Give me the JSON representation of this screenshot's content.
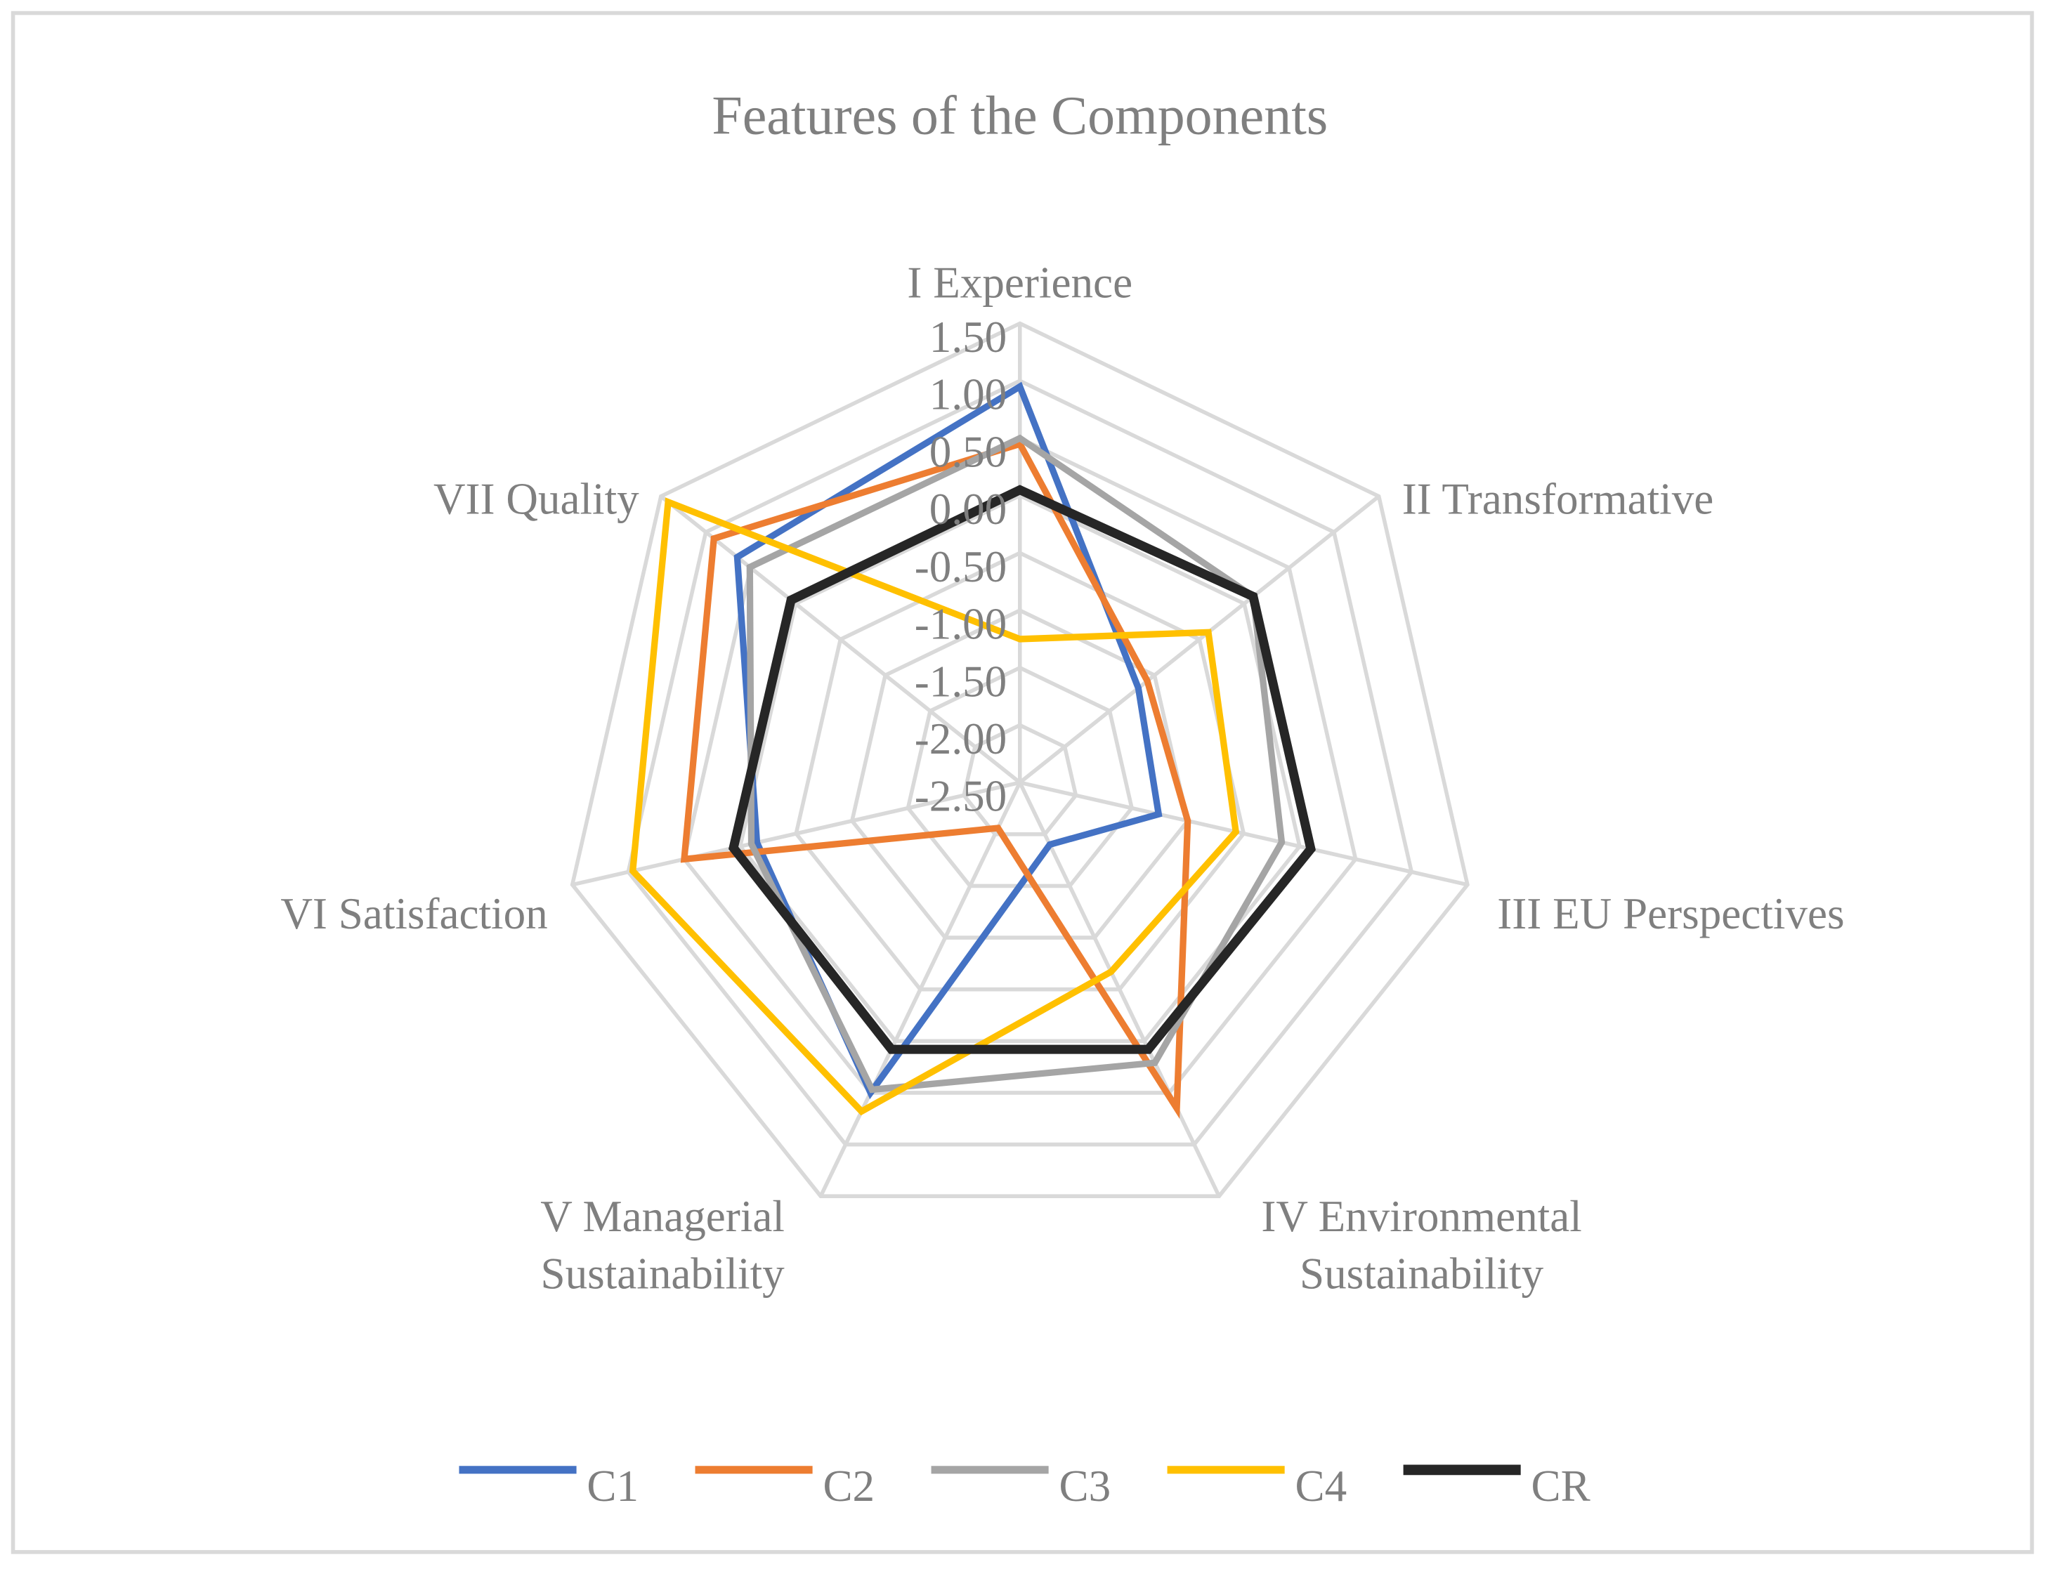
{
  "chart_data": {
    "type": "radar",
    "title": "Features of the Components",
    "categories": [
      "I Experience",
      "II Transformative",
      "III EU Perspectives",
      "IV Environmental Sustainability",
      "V Managerial Sustainability",
      "VI Satisfaction",
      "VII Quality"
    ],
    "ylim": [
      -2.5,
      1.5
    ],
    "yticks": [
      {
        "value": 1.5,
        "label": "1.50"
      },
      {
        "value": 1.0,
        "label": "1.00"
      },
      {
        "value": 0.5,
        "label": "0.50"
      },
      {
        "value": 0,
        "label": "0.00"
      },
      {
        "value": -0.5,
        "label": "-0.50"
      },
      {
        "value": -1.0,
        "label": "-1.00"
      },
      {
        "value": -1.5,
        "label": "-1.50"
      },
      {
        "value": -2.0,
        "label": "-2.00"
      },
      {
        "value": -2.5,
        "label": "-2.50"
      }
    ],
    "grid": true,
    "legend": "bottom",
    "series": [
      {
        "name": "C1",
        "color": "#4472c4",
        "values": [
          0.95,
          -1.18,
          -1.26,
          -1.9,
          0.5,
          -0.15,
          0.65
        ]
      },
      {
        "name": "C2",
        "color": "#ed7d31",
        "values": [
          0.45,
          -1.08,
          -1.0,
          0.65,
          -2.06,
          0.5,
          0.91
        ]
      },
      {
        "name": "C3",
        "color": "#a5a5a5",
        "values": [
          0.5,
          0.1,
          -0.16,
          0.21,
          0.47,
          -0.1,
          0.51
        ]
      },
      {
        "name": "C4",
        "color": "#ffc000",
        "values": [
          -1.25,
          -0.4,
          -0.57,
          -0.67,
          0.68,
          0.96,
          1.42
        ]
      },
      {
        "name": "CR",
        "color": "#262626",
        "values": [
          0.05,
          0.1,
          0.1,
          0.08,
          0.08,
          0.06,
          0.05
        ]
      }
    ]
  }
}
